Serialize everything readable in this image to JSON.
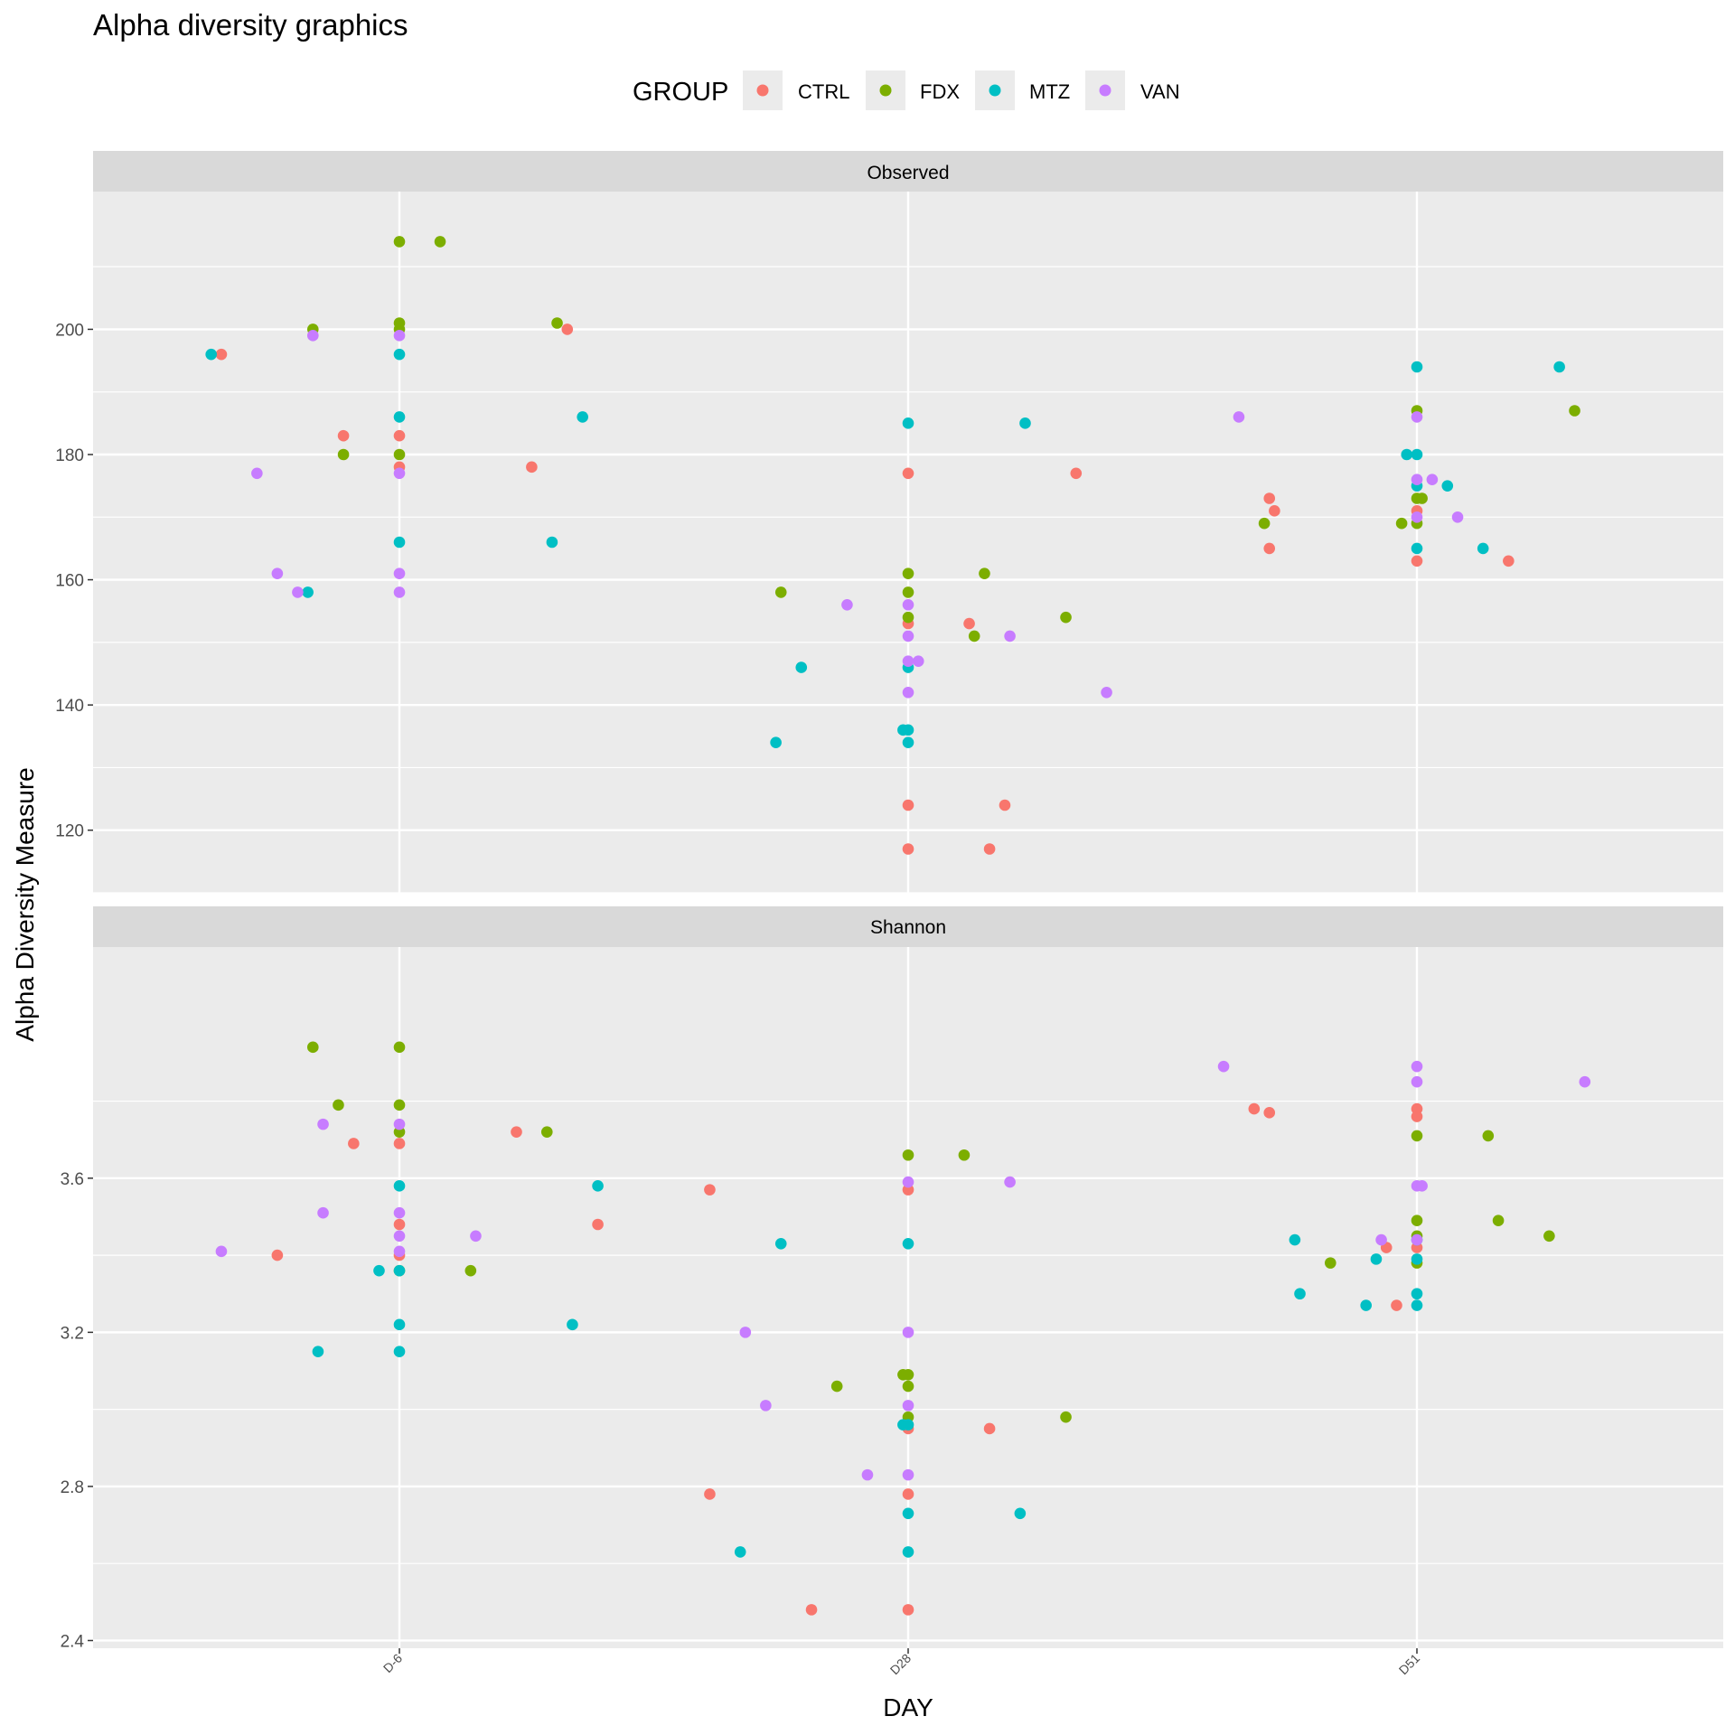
{
  "chart_data": {
    "type": "scatter",
    "title": "Alpha diversity graphics",
    "xlabel": "DAY",
    "ylabel": "Alpha Diversity Measure",
    "x_categories": [
      "D-6",
      "D28",
      "D51"
    ],
    "legend": {
      "title": "GROUP",
      "position": "top",
      "items": [
        {
          "name": "CTRL",
          "color": "#F8766D"
        },
        {
          "name": "FDX",
          "color": "#7CAE00"
        },
        {
          "name": "MTZ",
          "color": "#00BFC4"
        },
        {
          "name": "VAN",
          "color": "#C77CFF"
        }
      ]
    },
    "grid": true,
    "panels": [
      {
        "name": "Observed",
        "ylim": [
          110,
          222
        ],
        "yticks": [
          120,
          140,
          160,
          180,
          200
        ],
        "points": [
          {
            "x": 0.0,
            "y": 214,
            "g": "FDX"
          },
          {
            "x": 0.08,
            "y": 214,
            "g": "FDX"
          },
          {
            "x": -0.17,
            "y": 200,
            "g": "FDX"
          },
          {
            "x": -0.11,
            "y": 180,
            "g": "FDX"
          },
          {
            "x": 0.0,
            "y": 201,
            "g": "FDX"
          },
          {
            "x": 0.0,
            "y": 200,
            "g": "FDX"
          },
          {
            "x": 0.31,
            "y": 201,
            "g": "FDX"
          },
          {
            "x": 0.0,
            "y": 180,
            "g": "FDX"
          },
          {
            "x": -0.35,
            "y": 196,
            "g": "CTRL"
          },
          {
            "x": -0.11,
            "y": 183,
            "g": "CTRL"
          },
          {
            "x": 0.0,
            "y": 183,
            "g": "CTRL"
          },
          {
            "x": 0.0,
            "y": 178,
            "g": "CTRL"
          },
          {
            "x": 0.26,
            "y": 178,
            "g": "CTRL"
          },
          {
            "x": 0.33,
            "y": 200,
            "g": "CTRL"
          },
          {
            "x": -0.37,
            "y": 196,
            "g": "MTZ"
          },
          {
            "x": 0.0,
            "y": 196,
            "g": "MTZ"
          },
          {
            "x": 0.0,
            "y": 186,
            "g": "MTZ"
          },
          {
            "x": 0.0,
            "y": 166,
            "g": "MTZ"
          },
          {
            "x": -0.18,
            "y": 158,
            "g": "MTZ"
          },
          {
            "x": 0.36,
            "y": 186,
            "g": "MTZ"
          },
          {
            "x": 0.3,
            "y": 166,
            "g": "MTZ"
          },
          {
            "x": -0.17,
            "y": 199,
            "g": "VAN"
          },
          {
            "x": 0.0,
            "y": 199,
            "g": "VAN"
          },
          {
            "x": -0.28,
            "y": 177,
            "g": "VAN"
          },
          {
            "x": 0.0,
            "y": 177,
            "g": "VAN"
          },
          {
            "x": -0.24,
            "y": 161,
            "g": "VAN"
          },
          {
            "x": 0.0,
            "y": 161,
            "g": "VAN"
          },
          {
            "x": -0.2,
            "y": 158,
            "g": "VAN"
          },
          {
            "x": 0.0,
            "y": 158,
            "g": "VAN"
          },
          {
            "x": 1.0,
            "y": 177,
            "g": "CTRL"
          },
          {
            "x": 1.33,
            "y": 177,
            "g": "CTRL"
          },
          {
            "x": 1.0,
            "y": 153,
            "g": "CTRL"
          },
          {
            "x": 1.12,
            "y": 153,
            "g": "CTRL"
          },
          {
            "x": 1.0,
            "y": 124,
            "g": "CTRL"
          },
          {
            "x": 1.19,
            "y": 124,
            "g": "CTRL"
          },
          {
            "x": 1.0,
            "y": 117,
            "g": "CTRL"
          },
          {
            "x": 1.16,
            "y": 117,
            "g": "CTRL"
          },
          {
            "x": 0.75,
            "y": 158,
            "g": "FDX"
          },
          {
            "x": 1.0,
            "y": 161,
            "g": "FDX"
          },
          {
            "x": 1.0,
            "y": 158,
            "g": "FDX"
          },
          {
            "x": 1.0,
            "y": 154,
            "g": "FDX"
          },
          {
            "x": 1.15,
            "y": 161,
            "g": "FDX"
          },
          {
            "x": 1.13,
            "y": 151,
            "g": "FDX"
          },
          {
            "x": 1.31,
            "y": 154,
            "g": "FDX"
          },
          {
            "x": 1.0,
            "y": 185,
            "g": "MTZ"
          },
          {
            "x": 1.23,
            "y": 185,
            "g": "MTZ"
          },
          {
            "x": 0.79,
            "y": 146,
            "g": "MTZ"
          },
          {
            "x": 1.0,
            "y": 146,
            "g": "MTZ"
          },
          {
            "x": 0.74,
            "y": 134,
            "g": "MTZ"
          },
          {
            "x": 1.0,
            "y": 134,
            "g": "MTZ"
          },
          {
            "x": 0.99,
            "y": 136,
            "g": "MTZ"
          },
          {
            "x": 1.0,
            "y": 136,
            "g": "MTZ"
          },
          {
            "x": 0.88,
            "y": 156,
            "g": "VAN"
          },
          {
            "x": 1.0,
            "y": 156,
            "g": "VAN"
          },
          {
            "x": 1.0,
            "y": 151,
            "g": "VAN"
          },
          {
            "x": 1.2,
            "y": 151,
            "g": "VAN"
          },
          {
            "x": 1.0,
            "y": 147,
            "g": "VAN"
          },
          {
            "x": 1.02,
            "y": 147,
            "g": "VAN"
          },
          {
            "x": 1.0,
            "y": 142,
            "g": "VAN"
          },
          {
            "x": 1.39,
            "y": 142,
            "g": "VAN"
          },
          {
            "x": 1.71,
            "y": 173,
            "g": "CTRL"
          },
          {
            "x": 1.72,
            "y": 171,
            "g": "CTRL"
          },
          {
            "x": 1.71,
            "y": 165,
            "g": "CTRL"
          },
          {
            "x": 2.0,
            "y": 171,
            "g": "CTRL"
          },
          {
            "x": 2.0,
            "y": 163,
            "g": "CTRL"
          },
          {
            "x": 2.18,
            "y": 163,
            "g": "CTRL"
          },
          {
            "x": 1.7,
            "y": 169,
            "g": "FDX"
          },
          {
            "x": 2.0,
            "y": 187,
            "g": "FDX"
          },
          {
            "x": 2.31,
            "y": 187,
            "g": "FDX"
          },
          {
            "x": 2.0,
            "y": 173,
            "g": "FDX"
          },
          {
            "x": 2.01,
            "y": 173,
            "g": "FDX"
          },
          {
            "x": 1.97,
            "y": 169,
            "g": "FDX"
          },
          {
            "x": 2.0,
            "y": 169,
            "g": "FDX"
          },
          {
            "x": 2.0,
            "y": 194,
            "g": "MTZ"
          },
          {
            "x": 2.28,
            "y": 194,
            "g": "MTZ"
          },
          {
            "x": 1.98,
            "y": 180,
            "g": "MTZ"
          },
          {
            "x": 2.0,
            "y": 180,
            "g": "MTZ"
          },
          {
            "x": 2.0,
            "y": 175,
            "g": "MTZ"
          },
          {
            "x": 2.06,
            "y": 175,
            "g": "MTZ"
          },
          {
            "x": 2.0,
            "y": 165,
            "g": "MTZ"
          },
          {
            "x": 2.13,
            "y": 165,
            "g": "MTZ"
          },
          {
            "x": 1.65,
            "y": 186,
            "g": "VAN"
          },
          {
            "x": 2.0,
            "y": 186,
            "g": "VAN"
          },
          {
            "x": 2.0,
            "y": 176,
            "g": "VAN"
          },
          {
            "x": 2.03,
            "y": 176,
            "g": "VAN"
          },
          {
            "x": 2.0,
            "y": 170,
            "g": "VAN"
          },
          {
            "x": 2.08,
            "y": 170,
            "g": "VAN"
          }
        ]
      },
      {
        "name": "Shannon",
        "ylim": [
          2.38,
          4.2
        ],
        "yticks": [
          2.4,
          2.8,
          3.2,
          3.6
        ],
        "points": [
          {
            "x": -0.17,
            "y": 3.94,
            "g": "FDX"
          },
          {
            "x": 0.0,
            "y": 3.94,
            "g": "FDX"
          },
          {
            "x": -0.12,
            "y": 3.79,
            "g": "FDX"
          },
          {
            "x": 0.0,
            "y": 3.79,
            "g": "FDX"
          },
          {
            "x": 0.0,
            "y": 3.72,
            "g": "FDX"
          },
          {
            "x": 0.29,
            "y": 3.72,
            "g": "FDX"
          },
          {
            "x": 0.0,
            "y": 3.36,
            "g": "FDX"
          },
          {
            "x": 0.14,
            "y": 3.36,
            "g": "FDX"
          },
          {
            "x": -0.09,
            "y": 3.69,
            "g": "CTRL"
          },
          {
            "x": 0.0,
            "y": 3.69,
            "g": "CTRL"
          },
          {
            "x": 0.23,
            "y": 3.72,
            "g": "CTRL"
          },
          {
            "x": 0.0,
            "y": 3.48,
            "g": "CTRL"
          },
          {
            "x": 0.39,
            "y": 3.48,
            "g": "CTRL"
          },
          {
            "x": -0.24,
            "y": 3.4,
            "g": "CTRL"
          },
          {
            "x": 0.0,
            "y": 3.4,
            "g": "CTRL"
          },
          {
            "x": 0.0,
            "y": 3.58,
            "g": "MTZ"
          },
          {
            "x": 0.39,
            "y": 3.58,
            "g": "MTZ"
          },
          {
            "x": -0.04,
            "y": 3.36,
            "g": "MTZ"
          },
          {
            "x": 0.0,
            "y": 3.36,
            "g": "MTZ"
          },
          {
            "x": 0.0,
            "y": 3.22,
            "g": "MTZ"
          },
          {
            "x": 0.34,
            "y": 3.22,
            "g": "MTZ"
          },
          {
            "x": -0.16,
            "y": 3.15,
            "g": "MTZ"
          },
          {
            "x": 0.0,
            "y": 3.15,
            "g": "MTZ"
          },
          {
            "x": -0.15,
            "y": 3.74,
            "g": "VAN"
          },
          {
            "x": 0.0,
            "y": 3.74,
            "g": "VAN"
          },
          {
            "x": -0.15,
            "y": 3.51,
            "g": "VAN"
          },
          {
            "x": 0.0,
            "y": 3.51,
            "g": "VAN"
          },
          {
            "x": 0.0,
            "y": 3.45,
            "g": "VAN"
          },
          {
            "x": 0.15,
            "y": 3.45,
            "g": "VAN"
          },
          {
            "x": -0.35,
            "y": 3.41,
            "g": "VAN"
          },
          {
            "x": 0.0,
            "y": 3.41,
            "g": "VAN"
          },
          {
            "x": 0.61,
            "y": 3.57,
            "g": "CTRL"
          },
          {
            "x": 1.0,
            "y": 3.57,
            "g": "CTRL"
          },
          {
            "x": 0.61,
            "y": 2.78,
            "g": "CTRL"
          },
          {
            "x": 1.0,
            "y": 2.78,
            "g": "CTRL"
          },
          {
            "x": 0.81,
            "y": 2.48,
            "g": "CTRL"
          },
          {
            "x": 1.0,
            "y": 2.48,
            "g": "CTRL"
          },
          {
            "x": 1.0,
            "y": 2.95,
            "g": "CTRL"
          },
          {
            "x": 1.16,
            "y": 2.95,
            "g": "CTRL"
          },
          {
            "x": 1.0,
            "y": 3.66,
            "g": "FDX"
          },
          {
            "x": 1.11,
            "y": 3.66,
            "g": "FDX"
          },
          {
            "x": 0.99,
            "y": 3.09,
            "g": "FDX"
          },
          {
            "x": 1.0,
            "y": 3.09,
            "g": "FDX"
          },
          {
            "x": 0.86,
            "y": 3.06,
            "g": "FDX"
          },
          {
            "x": 1.0,
            "y": 3.06,
            "g": "FDX"
          },
          {
            "x": 1.0,
            "y": 2.98,
            "g": "FDX"
          },
          {
            "x": 1.31,
            "y": 2.98,
            "g": "FDX"
          },
          {
            "x": 0.75,
            "y": 3.43,
            "g": "MTZ"
          },
          {
            "x": 1.0,
            "y": 3.43,
            "g": "MTZ"
          },
          {
            "x": 0.99,
            "y": 2.96,
            "g": "MTZ"
          },
          {
            "x": 1.0,
            "y": 2.96,
            "g": "MTZ"
          },
          {
            "x": 1.0,
            "y": 2.73,
            "g": "MTZ"
          },
          {
            "x": 1.22,
            "y": 2.73,
            "g": "MTZ"
          },
          {
            "x": 0.67,
            "y": 2.63,
            "g": "MTZ"
          },
          {
            "x": 1.0,
            "y": 2.63,
            "g": "MTZ"
          },
          {
            "x": 1.0,
            "y": 3.59,
            "g": "VAN"
          },
          {
            "x": 1.2,
            "y": 3.59,
            "g": "VAN"
          },
          {
            "x": 0.68,
            "y": 3.2,
            "g": "VAN"
          },
          {
            "x": 1.0,
            "y": 3.2,
            "g": "VAN"
          },
          {
            "x": 0.72,
            "y": 3.01,
            "g": "VAN"
          },
          {
            "x": 1.0,
            "y": 3.01,
            "g": "VAN"
          },
          {
            "x": 0.92,
            "y": 2.83,
            "g": "VAN"
          },
          {
            "x": 1.0,
            "y": 2.83,
            "g": "VAN"
          },
          {
            "x": 1.68,
            "y": 3.78,
            "g": "CTRL"
          },
          {
            "x": 1.71,
            "y": 3.77,
            "g": "CTRL"
          },
          {
            "x": 2.0,
            "y": 3.78,
            "g": "CTRL"
          },
          {
            "x": 2.0,
            "y": 3.76,
            "g": "CTRL"
          },
          {
            "x": 1.94,
            "y": 3.42,
            "g": "CTRL"
          },
          {
            "x": 2.0,
            "y": 3.42,
            "g": "CTRL"
          },
          {
            "x": 1.96,
            "y": 3.27,
            "g": "CTRL"
          },
          {
            "x": 2.0,
            "y": 3.71,
            "g": "FDX"
          },
          {
            "x": 2.14,
            "y": 3.71,
            "g": "FDX"
          },
          {
            "x": 2.0,
            "y": 3.49,
            "g": "FDX"
          },
          {
            "x": 2.16,
            "y": 3.49,
            "g": "FDX"
          },
          {
            "x": 2.0,
            "y": 3.45,
            "g": "FDX"
          },
          {
            "x": 2.26,
            "y": 3.45,
            "g": "FDX"
          },
          {
            "x": 1.83,
            "y": 3.38,
            "g": "FDX"
          },
          {
            "x": 2.0,
            "y": 3.38,
            "g": "FDX"
          },
          {
            "x": 1.76,
            "y": 3.44,
            "g": "MTZ"
          },
          {
            "x": 2.0,
            "y": 3.44,
            "g": "MTZ"
          },
          {
            "x": 1.92,
            "y": 3.39,
            "g": "MTZ"
          },
          {
            "x": 2.0,
            "y": 3.39,
            "g": "MTZ"
          },
          {
            "x": 1.77,
            "y": 3.3,
            "g": "MTZ"
          },
          {
            "x": 2.0,
            "y": 3.3,
            "g": "MTZ"
          },
          {
            "x": 1.9,
            "y": 3.27,
            "g": "MTZ"
          },
          {
            "x": 2.0,
            "y": 3.27,
            "g": "MTZ"
          },
          {
            "x": 1.62,
            "y": 3.89,
            "g": "VAN"
          },
          {
            "x": 2.0,
            "y": 3.89,
            "g": "VAN"
          },
          {
            "x": 2.0,
            "y": 3.85,
            "g": "VAN"
          },
          {
            "x": 2.33,
            "y": 3.85,
            "g": "VAN"
          },
          {
            "x": 2.0,
            "y": 3.58,
            "g": "VAN"
          },
          {
            "x": 2.01,
            "y": 3.58,
            "g": "VAN"
          },
          {
            "x": 1.93,
            "y": 3.44,
            "g": "VAN"
          },
          {
            "x": 2.0,
            "y": 3.44,
            "g": "VAN"
          }
        ]
      }
    ]
  }
}
